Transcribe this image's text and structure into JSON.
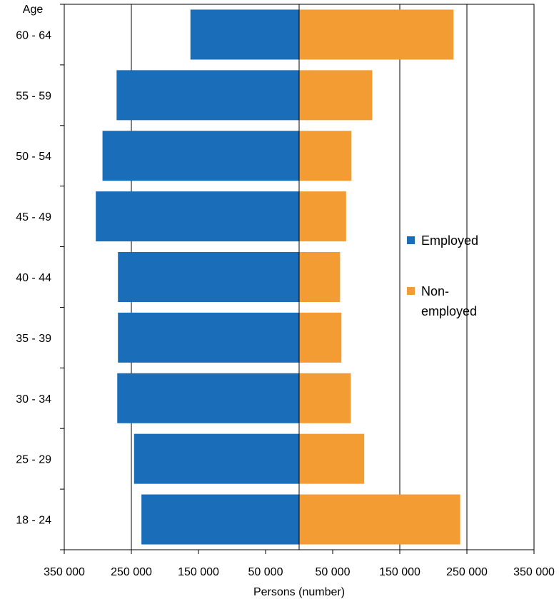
{
  "chart_data": {
    "type": "bar",
    "orientation": "horizontal-population-pyramid",
    "y_axis_title": "Age",
    "x_axis_title": "Persons (number)",
    "categories": [
      "60 - 64",
      "55 - 59",
      "50 - 54",
      "45 - 49",
      "40 - 44",
      "35 - 39",
      "30 - 34",
      "25 - 29",
      "18 - 24"
    ],
    "series": [
      {
        "name": "Employed",
        "side": "left",
        "color": "#1a6db8",
        "values": [
          162000,
          272000,
          293000,
          303000,
          270000,
          270000,
          271000,
          246000,
          235000
        ]
      },
      {
        "name": "Non-employed",
        "side": "right",
        "color": "#f39c34",
        "values": [
          230000,
          109000,
          78000,
          70000,
          61000,
          63000,
          77000,
          97000,
          240000
        ]
      }
    ],
    "xlim": [
      -350000,
      350000
    ],
    "x_ticks": [
      -350000,
      -250000,
      -150000,
      -50000,
      50000,
      150000,
      250000,
      350000
    ],
    "x_tick_labels": [
      "350 000",
      "250 000",
      "150 000",
      "50 000",
      "50 000",
      "150 000",
      "250 000",
      "350 000"
    ],
    "gridlines_at": [
      -250000,
      0,
      150000,
      250000
    ],
    "grid": true,
    "legend_position": "right-middle",
    "legend_labels": {
      "employed": "Employed",
      "non_employed_line1": "Non-",
      "non_employed_line2": "employed"
    }
  }
}
